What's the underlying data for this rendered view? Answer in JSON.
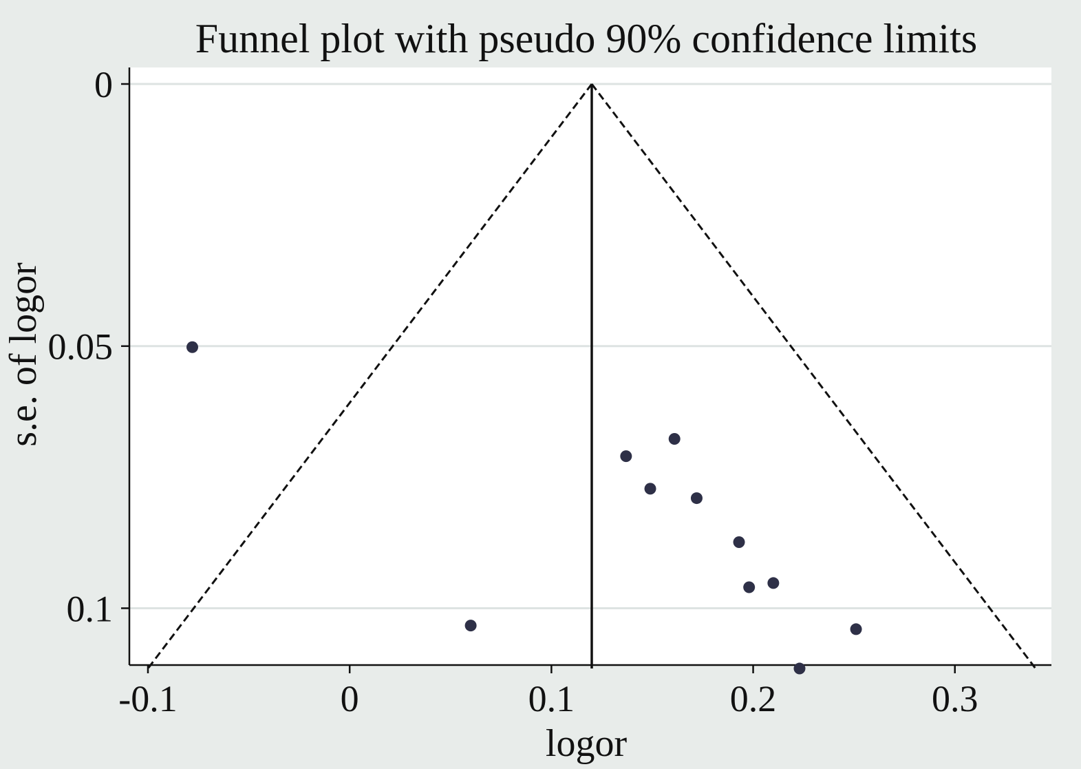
{
  "chart_data": {
    "type": "scatter",
    "title": "Funnel plot with pseudo 90% confidence limits",
    "xlabel": "logor",
    "ylabel": "s.e. of logor",
    "xlim": [
      -0.1,
      0.34
    ],
    "ylim": [
      0,
      0.1155
    ],
    "y_reversed": true,
    "x_ticks": [
      -0.1,
      0,
      0.1,
      0.2,
      0.3
    ],
    "x_tick_labels": [
      "-0.1",
      "0",
      "0.1",
      "0.2",
      "0.3"
    ],
    "y_ticks": [
      0,
      0.05,
      0.1
    ],
    "y_tick_labels": [
      "0",
      "0.05",
      "0.1"
    ],
    "grid": "horizontal",
    "pooled_estimate": 0.12,
    "pseudo_confidence_limits": [
      {
        "x": [
          0.12,
          -0.1
        ],
        "y": [
          0,
          0.1115
        ]
      },
      {
        "x": [
          0.12,
          0.34
        ],
        "y": [
          0,
          0.1115
        ]
      }
    ],
    "pooled_line": {
      "x": [
        0.12,
        0.12
      ],
      "y": [
        0,
        0.1115
      ]
    },
    "points": [
      {
        "x": -0.078,
        "y": 0.0502
      },
      {
        "x": 0.06,
        "y": 0.1033
      },
      {
        "x": 0.137,
        "y": 0.071
      },
      {
        "x": 0.149,
        "y": 0.0772
      },
      {
        "x": 0.161,
        "y": 0.0677
      },
      {
        "x": 0.172,
        "y": 0.079
      },
      {
        "x": 0.193,
        "y": 0.0874
      },
      {
        "x": 0.198,
        "y": 0.096
      },
      {
        "x": 0.21,
        "y": 0.0952
      },
      {
        "x": 0.223,
        "y": 0.1115
      },
      {
        "x": 0.251,
        "y": 0.104
      }
    ],
    "colors": {
      "page_background": "#e8ecea",
      "plot_background": "#ffffff",
      "gridline": "#dde3e2",
      "marker": "#2e3047",
      "line": "#111111"
    }
  }
}
